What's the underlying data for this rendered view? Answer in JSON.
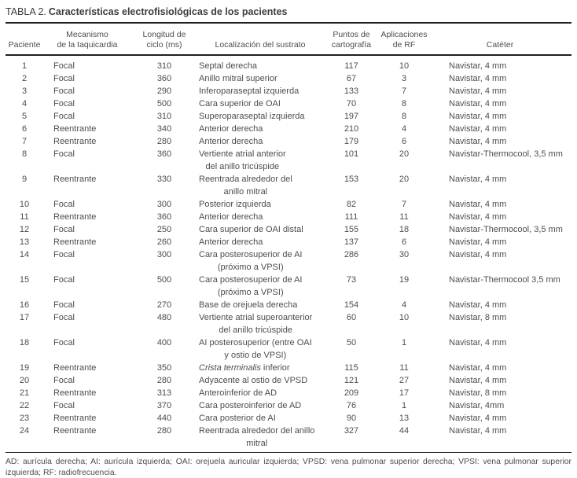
{
  "title": {
    "label": "TABLA 2.",
    "text": "Características electrofisiológicas de los pacientes"
  },
  "table": {
    "headers": [
      "Paciente",
      "Mecanismo\nde la taquicardia",
      "Longitud de\nciclo (ms)",
      "Localización del sustrato",
      "Puntos de\ncartografía",
      "Aplicaciones\nde RF",
      "Catéter"
    ],
    "rows": [
      {
        "patient": "1",
        "mechanism": "Focal",
        "cycle_ms": "310",
        "location": [
          "Septal derecha"
        ],
        "mapping_points": "117",
        "rf_applications": "10",
        "catheter": "Navistar, 4 mm"
      },
      {
        "patient": "2",
        "mechanism": "Focal",
        "cycle_ms": "360",
        "location": [
          "Anillo mitral superior"
        ],
        "mapping_points": "67",
        "rf_applications": "3",
        "catheter": "Navistar, 4 mm"
      },
      {
        "patient": "3",
        "mechanism": "Focal",
        "cycle_ms": "290",
        "location": [
          "Inferoparaseptal izquierda"
        ],
        "mapping_points": "133",
        "rf_applications": "7",
        "catheter": "Navistar, 4 mm"
      },
      {
        "patient": "4",
        "mechanism": "Focal",
        "cycle_ms": "500",
        "location": [
          "Cara superior de OAI"
        ],
        "mapping_points": "70",
        "rf_applications": "8",
        "catheter": "Navistar, 4 mm"
      },
      {
        "patient": "5",
        "mechanism": "Focal",
        "cycle_ms": "310",
        "location": [
          "Superoparaseptal izquierda"
        ],
        "mapping_points": "197",
        "rf_applications": "8",
        "catheter": "Navistar, 4 mm"
      },
      {
        "patient": "6",
        "mechanism": "Reentrante",
        "cycle_ms": "340",
        "location": [
          "Anterior derecha"
        ],
        "mapping_points": "210",
        "rf_applications": "4",
        "catheter": "Navistar, 4 mm"
      },
      {
        "patient": "7",
        "mechanism": "Reentrante",
        "cycle_ms": "280",
        "location": [
          "Anterior derecha"
        ],
        "mapping_points": "179",
        "rf_applications": "6",
        "catheter": "Navistar, 4 mm"
      },
      {
        "patient": "8",
        "mechanism": "Focal",
        "cycle_ms": "360",
        "location": [
          "Vertiente atrial anterior",
          "del anillo tricúspide"
        ],
        "mapping_points": "101",
        "rf_applications": "20",
        "catheter": "Navistar-Thermocool, 3,5 mm"
      },
      {
        "patient": "9",
        "mechanism": "Reentrante",
        "cycle_ms": "330",
        "location": [
          "Reentrada alrededor del",
          "anillo mitral"
        ],
        "mapping_points": "153",
        "rf_applications": "20",
        "catheter": "Navistar, 4 mm"
      },
      {
        "patient": "10",
        "mechanism": "Focal",
        "cycle_ms": "300",
        "location": [
          "Posterior izquierda"
        ],
        "mapping_points": "82",
        "rf_applications": "7",
        "catheter": "Navistar, 4 mm"
      },
      {
        "patient": "11",
        "mechanism": "Reentrante",
        "cycle_ms": "360",
        "location": [
          "Anterior derecha"
        ],
        "mapping_points": "111",
        "rf_applications": "11",
        "catheter": "Navistar, 4 mm"
      },
      {
        "patient": "12",
        "mechanism": "Focal",
        "cycle_ms": "250",
        "location": [
          "Cara superior de OAI distal"
        ],
        "mapping_points": "155",
        "rf_applications": "18",
        "catheter": "Navistar-Thermocool, 3,5 mm"
      },
      {
        "patient": "13",
        "mechanism": "Reentrante",
        "cycle_ms": "260",
        "location": [
          "Anterior derecha"
        ],
        "mapping_points": "137",
        "rf_applications": "6",
        "catheter": "Navistar, 4 mm"
      },
      {
        "patient": "14",
        "mechanism": "Focal",
        "cycle_ms": "300",
        "location": [
          "Cara posterosuperior de AI",
          "(próximo a VPSI)"
        ],
        "mapping_points": "286",
        "rf_applications": "30",
        "catheter": "Navistar, 4 mm"
      },
      {
        "patient": "15",
        "mechanism": "Focal",
        "cycle_ms": "500",
        "location": [
          "Cara posterosuperior de AI",
          "(próximo a VPSI)"
        ],
        "mapping_points": "73",
        "rf_applications": "19",
        "catheter": "Navistar-Thermocool 3,5 mm"
      },
      {
        "patient": "16",
        "mechanism": "Focal",
        "cycle_ms": "270",
        "location": [
          "Base de orejuela derecha"
        ],
        "mapping_points": "154",
        "rf_applications": "4",
        "catheter": "Navistar, 4 mm"
      },
      {
        "patient": "17",
        "mechanism": "Focal",
        "cycle_ms": "480",
        "location": [
          "Vertiente atrial superoanterior",
          "del anillo tricúspide"
        ],
        "mapping_points": "60",
        "rf_applications": "10",
        "catheter": "Navistar, 8 mm"
      },
      {
        "patient": "18",
        "mechanism": "Focal",
        "cycle_ms": "400",
        "location": [
          "AI posterosuperior (entre OAI",
          "y ostio de VPSI)"
        ],
        "mapping_points": "50",
        "rf_applications": "1",
        "catheter": "Navistar, 4 mm"
      },
      {
        "patient": "19",
        "mechanism": "Reentrante",
        "cycle_ms": "350",
        "location": [
          {
            "i": "Crista terminalis",
            "t": " inferior"
          }
        ],
        "mapping_points": "115",
        "rf_applications": "11",
        "catheter": "Navistar, 4 mm"
      },
      {
        "patient": "20",
        "mechanism": "Focal",
        "cycle_ms": "280",
        "location": [
          "Adyacente al ostio de VPSD"
        ],
        "mapping_points": "121",
        "rf_applications": "27",
        "catheter": "Navistar, 4 mm"
      },
      {
        "patient": "21",
        "mechanism": "Reentrante",
        "cycle_ms": "313",
        "location": [
          "Anteroinferior de AD"
        ],
        "mapping_points": "209",
        "rf_applications": "17",
        "catheter": "Navistar, 8 mm"
      },
      {
        "patient": "22",
        "mechanism": "Focal",
        "cycle_ms": "370",
        "location": [
          "Cara posteroinferior de AD"
        ],
        "mapping_points": "76",
        "rf_applications": "1",
        "catheter": "Navistar, 4mm"
      },
      {
        "patient": "23",
        "mechanism": "Reentrante",
        "cycle_ms": "440",
        "location": [
          "Cara posterior de AI"
        ],
        "mapping_points": "90",
        "rf_applications": "13",
        "catheter": "Navistar, 4 mm"
      },
      {
        "patient": "24",
        "mechanism": "Reentrante",
        "cycle_ms": "280",
        "location": [
          "Reentrada alrededor del anillo",
          "mitral"
        ],
        "mapping_points": "327",
        "rf_applications": "44",
        "catheter": "Navistar, 4 mm"
      }
    ]
  },
  "footnote": "AD: aurícula derecha; AI: aurícula izquierda; OAI: orejuela auricular izquierda; VPSD: vena pulmonar superior derecha; VPSI: vena pulmonar superior izquierda; RF: radiofrecuencia.",
  "colors": {
    "text": "#4d4d4d",
    "rule": "#1f1f1f",
    "background": "#ffffff"
  }
}
